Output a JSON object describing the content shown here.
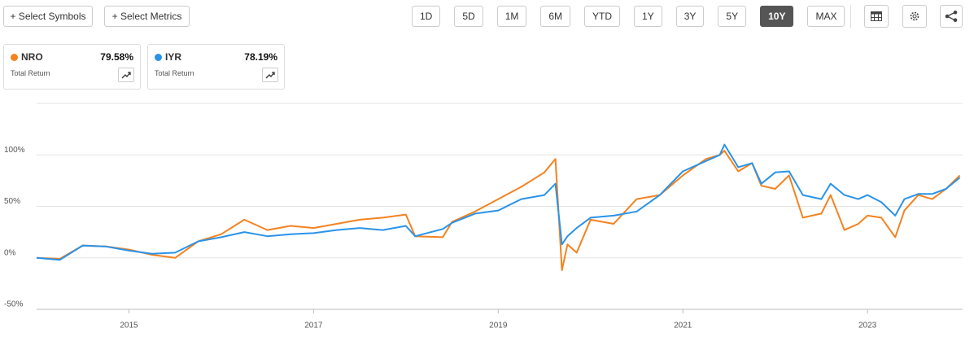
{
  "toolbar": {
    "select_symbols": "+ Select Symbols",
    "select_metrics": "+ Select Metrics",
    "ranges": [
      "1D",
      "5D",
      "1M",
      "6M",
      "YTD",
      "1Y",
      "3Y",
      "5Y",
      "10Y",
      "MAX"
    ],
    "active_range": "10Y"
  },
  "legend_cards": [
    {
      "value": "79.58%",
      "metric": "Total Return"
    },
    {
      "value": "78.19%",
      "metric": "Total Return"
    }
  ],
  "chart_data": {
    "type": "line",
    "x": [
      2014.0,
      2014.25,
      2014.5,
      2014.75,
      2015.0,
      2015.25,
      2015.5,
      2015.75,
      2016.0,
      2016.25,
      2016.5,
      2016.75,
      2017.0,
      2017.25,
      2017.5,
      2017.75,
      2018.0,
      2018.1,
      2018.4,
      2018.5,
      2018.75,
      2019.0,
      2019.25,
      2019.5,
      2019.62,
      2019.69,
      2019.75,
      2019.85,
      2020.0,
      2020.25,
      2020.5,
      2020.75,
      2021.0,
      2021.25,
      2021.4,
      2021.45,
      2021.6,
      2021.75,
      2021.85,
      2022.0,
      2022.15,
      2022.3,
      2022.5,
      2022.6,
      2022.75,
      2022.9,
      2023.0,
      2023.15,
      2023.3,
      2023.4,
      2023.55,
      2023.7,
      2023.85,
      2024.0
    ],
    "series": [
      {
        "name": "NRO",
        "color": "#f5821f",
        "values": [
          0,
          -1,
          12,
          11,
          8,
          3,
          0,
          16,
          23,
          37,
          27,
          31,
          29,
          33,
          37,
          39,
          42,
          21,
          20,
          35,
          45,
          57,
          69,
          83,
          96,
          -12,
          13,
          5,
          37,
          33,
          57,
          61,
          80,
          96,
          100,
          104,
          84,
          92,
          70,
          67,
          80,
          39,
          43,
          61,
          27,
          33,
          41,
          39,
          20,
          46,
          61,
          57,
          67,
          80
        ]
      },
      {
        "name": "IYR",
        "color": "#2a93e8",
        "values": [
          0,
          -2,
          12,
          11,
          7,
          4,
          5,
          16,
          20,
          25,
          21,
          23,
          24,
          27,
          29,
          27,
          31,
          21,
          28,
          34,
          43,
          46,
          57,
          61,
          72,
          13,
          21,
          29,
          39,
          41,
          45,
          61,
          84,
          94,
          100,
          110,
          88,
          92,
          72,
          83,
          84,
          61,
          57,
          72,
          61,
          57,
          61,
          54,
          41,
          57,
          62,
          62,
          67,
          78
        ]
      }
    ],
    "xlim": [
      2014.0,
      2024.03
    ],
    "xticks": [
      2015,
      2017,
      2019,
      2021,
      2023
    ],
    "ylim": [
      -50,
      150
    ],
    "yticks": [
      {
        "value": -50,
        "label": "-50%"
      },
      {
        "value": 0,
        "label": "0%"
      },
      {
        "value": 50,
        "label": "50%"
      },
      {
        "value": 100,
        "label": "100%"
      }
    ],
    "grid": true
  }
}
